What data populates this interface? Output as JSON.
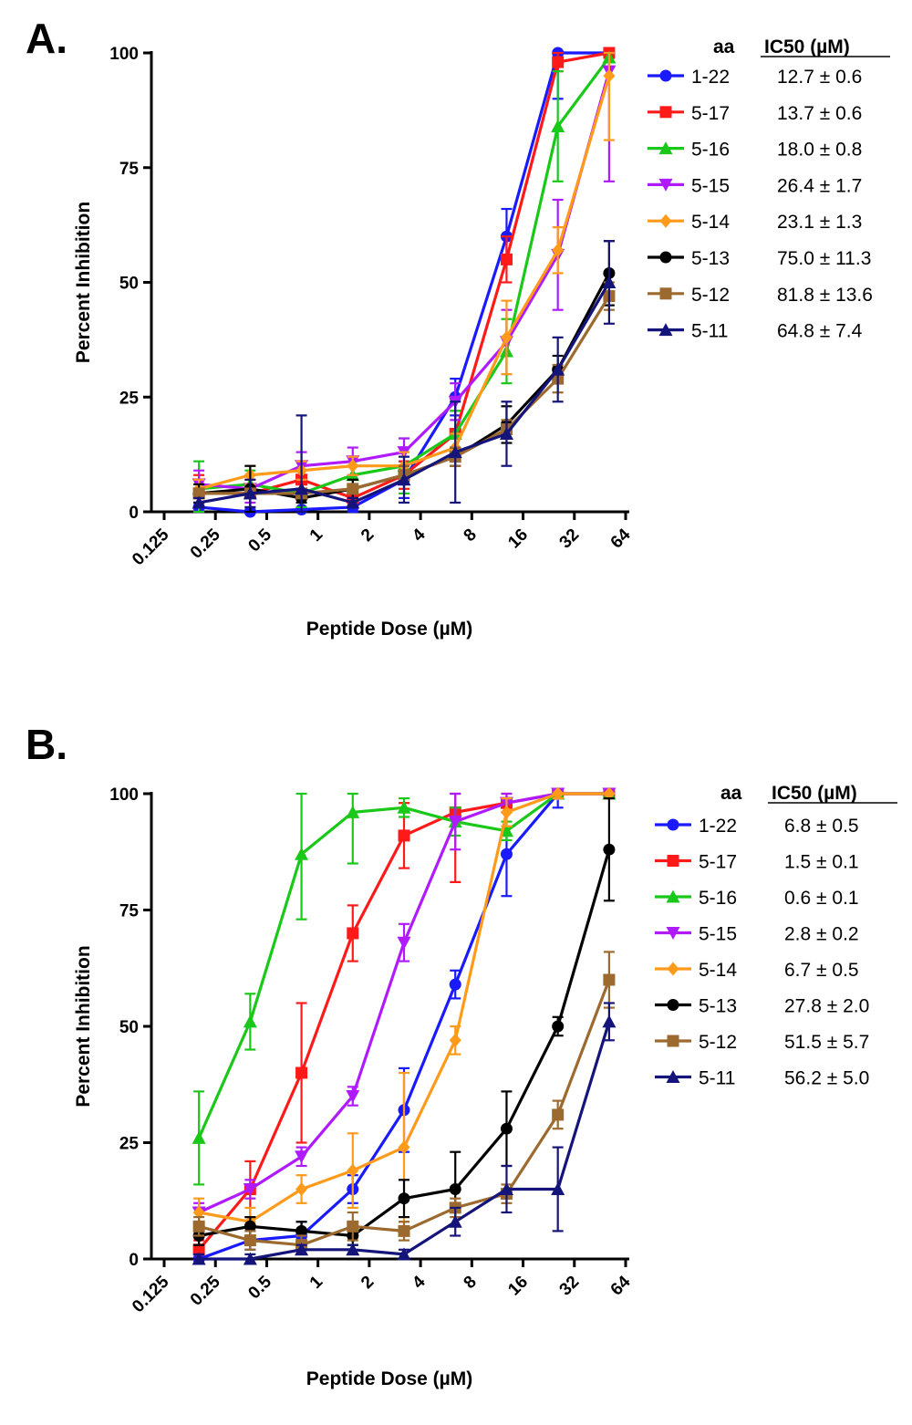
{
  "chart_data": [
    {
      "panel_label": "A.",
      "type": "line",
      "xlabel": "Peptide Dose (µM)",
      "ylabel": "Percent Inhibition",
      "xscale": "log2",
      "xticks": [
        "0.125",
        "0.25",
        "0.5",
        "1",
        "2",
        "4",
        "8",
        "16",
        "32",
        "64"
      ],
      "yticks": [
        "0",
        "25",
        "50",
        "75",
        "100"
      ],
      "ylim": [
        0,
        100
      ],
      "x": [
        0.2,
        0.4,
        0.8,
        1.6,
        3.2,
        6.4,
        12.8,
        25.6,
        51.2
      ],
      "legend_header": [
        "aa",
        "IC50 (µM)"
      ],
      "legend_position": "right",
      "series": [
        {
          "name": "1-22",
          "ic50": "12.7 ± 0.6",
          "color": "#1a1aff",
          "marker": "circle",
          "values": [
            1,
            0,
            0.5,
            1,
            7,
            25,
            60,
            100,
            100
          ],
          "errors": [
            1,
            0.5,
            0.5,
            1,
            4,
            4,
            6,
            10,
            1
          ]
        },
        {
          "name": "5-17",
          "ic50": "13.7 ± 0.6",
          "color": "#ff1a1a",
          "marker": "square",
          "values": [
            4,
            4,
            7,
            3,
            8,
            17,
            55,
            98,
            100
          ],
          "errors": [
            4,
            3,
            4,
            2,
            3,
            5,
            5,
            2,
            1
          ]
        },
        {
          "name": "5-16",
          "ic50": "18.0 ± 0.8",
          "color": "#1ac81a",
          "marker": "triangle-up",
          "values": [
            5,
            6,
            4,
            8,
            10,
            17,
            35,
            84,
            99
          ],
          "errors": [
            6,
            3,
            3,
            3,
            6,
            5,
            7,
            12,
            2
          ]
        },
        {
          "name": "5-15",
          "ic50": "26.4 ± 1.7",
          "color": "#b01aff",
          "marker": "triangle-down",
          "values": [
            6,
            5,
            10,
            11,
            13,
            24,
            37,
            56,
            96
          ],
          "errors": [
            3,
            3,
            3,
            3,
            3,
            4,
            7,
            12,
            24
          ]
        },
        {
          "name": "5-14",
          "ic50": "23.1 ± 1.3",
          "color": "#ff9a1a",
          "marker": "diamond",
          "values": [
            5,
            8,
            9,
            10,
            10,
            14,
            38,
            57,
            95
          ],
          "errors": [
            2,
            2,
            2,
            2,
            3,
            3,
            8,
            5,
            14
          ]
        },
        {
          "name": "5-13",
          "ic50": "75.0 ± 11.3",
          "color": "#000000",
          "marker": "circle",
          "values": [
            4,
            5,
            3,
            5,
            8,
            12,
            19,
            31,
            52
          ],
          "errors": [
            2,
            5,
            1,
            2,
            2,
            2,
            4,
            3,
            7
          ]
        },
        {
          "name": "5-12",
          "ic50": "81.8 ± 13.6",
          "color": "#9c6a2e",
          "marker": "square",
          "values": [
            4,
            4,
            4,
            5,
            8,
            12,
            18,
            29,
            47
          ],
          "errors": [
            1,
            1,
            1,
            1,
            2,
            2,
            2,
            3,
            3
          ]
        },
        {
          "name": "5-11",
          "ic50": "64.8 ± 7.4",
          "color": "#14147a",
          "marker": "triangle-up",
          "values": [
            2,
            4,
            5,
            2,
            7,
            13,
            17,
            31,
            50
          ],
          "errors": [
            1,
            3,
            16,
            1,
            5,
            11,
            7,
            7,
            9
          ]
        }
      ]
    },
    {
      "panel_label": "B.",
      "type": "line",
      "xlabel": "Peptide Dose (µM)",
      "ylabel": "Percent Inhibition",
      "xscale": "log2",
      "xticks": [
        "0.125",
        "0.25",
        "0.5",
        "1",
        "2",
        "4",
        "8",
        "16",
        "32",
        "64"
      ],
      "yticks": [
        "0",
        "25",
        "50",
        "75",
        "100"
      ],
      "ylim": [
        0,
        100
      ],
      "x": [
        0.2,
        0.4,
        0.8,
        1.6,
        3.2,
        6.4,
        12.8,
        25.6,
        51.2
      ],
      "legend_header": [
        "aa",
        "IC50 (µM)"
      ],
      "legend_position": "right",
      "series": [
        {
          "name": "1-22",
          "ic50": "6.8 ± 0.5",
          "color": "#1a1aff",
          "marker": "circle",
          "values": [
            0,
            4,
            5,
            15,
            32,
            59,
            87,
            100,
            100
          ],
          "errors": [
            1,
            2,
            3,
            3,
            9,
            3,
            9,
            3,
            1
          ]
        },
        {
          "name": "5-17",
          "ic50": "1.5 ± 0.1",
          "color": "#ff1a1a",
          "marker": "square",
          "values": [
            2,
            15,
            40,
            70,
            91,
            96,
            98,
            100,
            100
          ],
          "errors": [
            2,
            6,
            15,
            6,
            7,
            15,
            2,
            1,
            1
          ]
        },
        {
          "name": "5-16",
          "ic50": "0.6 ± 0.1",
          "color": "#1ac81a",
          "marker": "triangle-up",
          "values": [
            26,
            51,
            87,
            96,
            97,
            94,
            92,
            100,
            100
          ],
          "errors": [
            10,
            6,
            14,
            11,
            2,
            3,
            2,
            1,
            1
          ]
        },
        {
          "name": "5-15",
          "ic50": "2.8 ± 0.2",
          "color": "#b01aff",
          "marker": "triangle-down",
          "values": [
            10,
            15,
            22,
            35,
            68,
            94,
            98,
            100,
            100
          ],
          "errors": [
            2,
            2,
            2,
            2,
            4,
            6,
            2,
            1,
            1
          ]
        },
        {
          "name": "5-14",
          "ic50": "6.7 ± 0.5",
          "color": "#ff9a1a",
          "marker": "diamond",
          "values": [
            10,
            8,
            15,
            19,
            24,
            47,
            96,
            100,
            100
          ],
          "errors": [
            3,
            3,
            3,
            8,
            16,
            3,
            3,
            1,
            1
          ]
        },
        {
          "name": "5-13",
          "ic50": "27.8 ± 2.0",
          "color": "#000000",
          "marker": "circle",
          "values": [
            5,
            7,
            6,
            5,
            13,
            15,
            28,
            50,
            88
          ],
          "errors": [
            2,
            2,
            2,
            2,
            4,
            8,
            8,
            2,
            11
          ]
        },
        {
          "name": "5-12",
          "ic50": "51.5 ± 5.7",
          "color": "#9c6a2e",
          "marker": "square",
          "values": [
            7,
            4,
            3,
            7,
            6,
            11,
            14,
            31,
            60
          ],
          "errors": [
            2,
            2,
            2,
            3,
            2,
            2,
            2,
            3,
            6
          ]
        },
        {
          "name": "5-11",
          "ic50": "56.2 ± 5.0",
          "color": "#14147a",
          "marker": "triangle-up",
          "values": [
            0,
            0,
            2,
            2,
            1,
            8,
            15,
            15,
            51
          ],
          "errors": [
            1,
            1,
            1,
            1,
            1,
            3,
            5,
            9,
            4
          ]
        }
      ]
    }
  ]
}
